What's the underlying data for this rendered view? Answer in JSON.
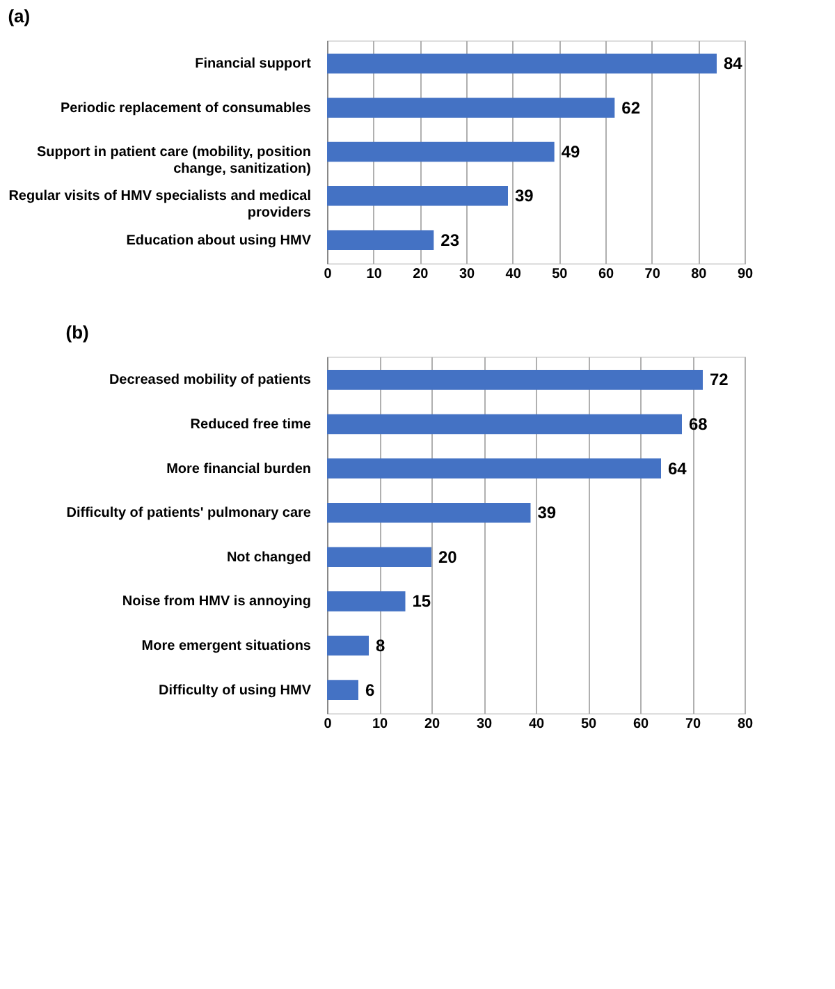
{
  "chart_data": [
    {
      "type": "bar",
      "orientation": "horizontal",
      "title": "(a)",
      "categories": [
        "Financial support",
        "Periodic replacement of consumables",
        "Support in patient care (mobility, position change, sanitization)",
        "Regular visits of HMV specialists and medical providers",
        "Education about using HMV"
      ],
      "values": [
        84,
        62,
        49,
        39,
        23
      ],
      "color": "#4472c4",
      "xlim": [
        0,
        90
      ],
      "xticks": [
        0,
        10,
        20,
        30,
        40,
        50,
        60,
        70,
        80,
        90
      ],
      "grid": "x",
      "data_labels": true
    },
    {
      "type": "bar",
      "orientation": "horizontal",
      "title": "(b)",
      "categories": [
        "Decreased mobility of patients",
        "Reduced free time",
        "More financial burden",
        "Difficulty of patients' pulmonary care",
        "Not changed",
        "Noise from HMV is annoying",
        "More emergent situations",
        "Difficulty of using HMV"
      ],
      "values": [
        72,
        68,
        64,
        39,
        20,
        15,
        8,
        6
      ],
      "color": "#4472c4",
      "xlim": [
        0,
        80
      ],
      "xticks": [
        0,
        10,
        20,
        30,
        40,
        50,
        60,
        70,
        80
      ],
      "grid": "x",
      "data_labels": true
    }
  ]
}
